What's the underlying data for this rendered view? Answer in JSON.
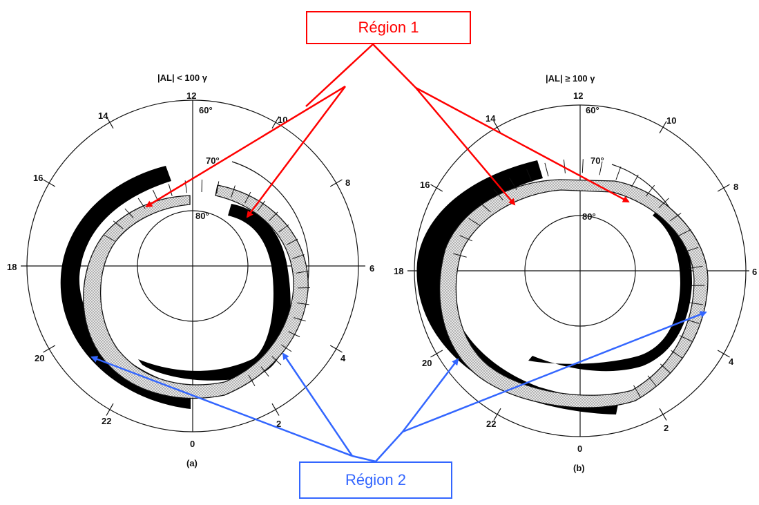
{
  "colors": {
    "region1": "#ff0000",
    "region2": "#3366ff",
    "oval_solid": "#000000",
    "oval_dotted": "#d8d8d8"
  },
  "labels": {
    "region1": "Région 1",
    "region2": "Région 2"
  },
  "panels": [
    {
      "id": "a",
      "title": "|AL| < 100 γ",
      "caption": "(a)",
      "hours": [
        "12",
        "14",
        "16",
        "18",
        "20",
        "22",
        "0",
        "2",
        "4",
        "6",
        "8",
        "10"
      ],
      "latitudes": [
        "60°",
        "70°",
        "80°"
      ]
    },
    {
      "id": "b",
      "title": "|AL| ≥ 100 γ",
      "caption": "(b)",
      "hours": [
        "12",
        "14",
        "16",
        "18",
        "20",
        "22",
        "0",
        "2",
        "4",
        "6",
        "8",
        "10"
      ],
      "latitudes": [
        "60°",
        "70°",
        "80°"
      ]
    }
  ]
}
